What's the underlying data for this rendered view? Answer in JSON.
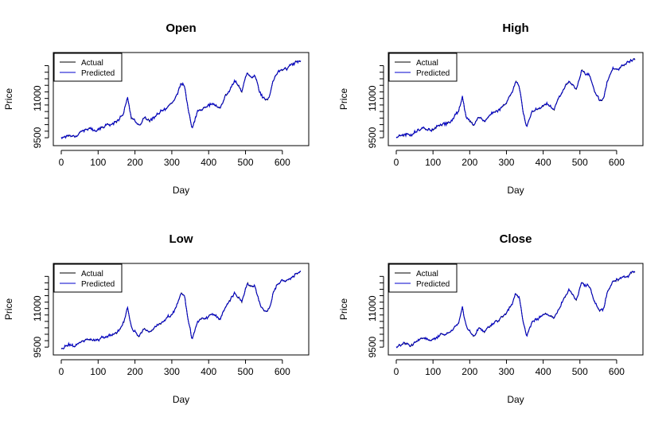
{
  "chart_data": [
    {
      "type": "line",
      "title": "Open",
      "xlabel": "Day",
      "ylabel": "Price",
      "xlim": [
        0,
        650
      ],
      "ylim": [
        9350,
        12600
      ],
      "xticks": [
        0,
        100,
        200,
        300,
        400,
        500,
        600
      ],
      "yticks": [
        9500,
        11000
      ],
      "grid": false,
      "legend_position": "top-left",
      "series": [
        {
          "name": "Actual",
          "color": "#000000"
        },
        {
          "name": "Predicted",
          "color": "#0000cc"
        }
      ],
      "x": [
        0,
        20,
        40,
        60,
        80,
        100,
        120,
        150,
        170,
        180,
        190,
        210,
        225,
        240,
        260,
        280,
        300,
        315,
        325,
        335,
        345,
        355,
        370,
        390,
        410,
        430,
        450,
        470,
        490,
        505,
        515,
        525,
        540,
        555,
        565,
        575,
        590,
        610,
        630,
        645,
        650
      ],
      "values": [
        9500,
        9600,
        9580,
        9800,
        9830,
        9780,
        9960,
        10100,
        10500,
        11050,
        10300,
        9900,
        10270,
        10100,
        10400,
        10550,
        10800,
        11150,
        11600,
        11450,
        10500,
        9850,
        10500,
        10650,
        10800,
        10600,
        11200,
        11650,
        11300,
        12000,
        11850,
        11900,
        11200,
        10900,
        11000,
        11700,
        12050,
        12150,
        12300,
        12450,
        12450
      ]
    },
    {
      "type": "line",
      "title": "High",
      "xlabel": "Day",
      "ylabel": "Price",
      "xlim": [
        0,
        650
      ],
      "ylim": [
        9350,
        12600
      ],
      "xticks": [
        0,
        100,
        200,
        300,
        400,
        500,
        600
      ],
      "yticks": [
        9500,
        11000
      ],
      "grid": false,
      "legend_position": "top-left",
      "series": [
        {
          "name": "Actual",
          "color": "#000000"
        },
        {
          "name": "Predicted",
          "color": "#0000cc"
        }
      ],
      "x": [
        0,
        20,
        40,
        60,
        80,
        100,
        120,
        150,
        170,
        180,
        190,
        210,
        225,
        240,
        260,
        280,
        300,
        315,
        325,
        335,
        345,
        355,
        370,
        390,
        410,
        430,
        450,
        470,
        490,
        505,
        515,
        525,
        540,
        555,
        565,
        575,
        590,
        610,
        630,
        645,
        650
      ],
      "values": [
        9530,
        9620,
        9600,
        9830,
        9850,
        9800,
        9990,
        10130,
        10530,
        11080,
        10330,
        9930,
        10300,
        10130,
        10430,
        10580,
        10830,
        11180,
        11630,
        11480,
        10540,
        9880,
        10530,
        10680,
        10830,
        10630,
        11230,
        11680,
        11330,
        12030,
        11880,
        11930,
        11230,
        10930,
        11030,
        11730,
        12080,
        12180,
        12330,
        12480,
        12480
      ]
    },
    {
      "type": "line",
      "title": "Low",
      "xlabel": "Day",
      "ylabel": "Price",
      "xlim": [
        0,
        650
      ],
      "ylim": [
        9350,
        12600
      ],
      "xticks": [
        0,
        100,
        200,
        300,
        400,
        500,
        600
      ],
      "yticks": [
        9500,
        11000
      ],
      "grid": false,
      "legend_position": "top-left",
      "series": [
        {
          "name": "Actual",
          "color": "#000000"
        },
        {
          "name": "Predicted",
          "color": "#0000cc"
        }
      ],
      "x": [
        0,
        20,
        40,
        60,
        80,
        100,
        120,
        150,
        170,
        180,
        190,
        210,
        225,
        240,
        260,
        280,
        300,
        315,
        325,
        335,
        345,
        355,
        370,
        390,
        410,
        430,
        450,
        470,
        490,
        505,
        515,
        525,
        540,
        555,
        565,
        575,
        590,
        610,
        630,
        645,
        650
      ],
      "values": [
        9470,
        9570,
        9550,
        9770,
        9800,
        9750,
        9930,
        10070,
        10470,
        11020,
        10270,
        9870,
        10240,
        10070,
        10370,
        10520,
        10770,
        11120,
        11570,
        11420,
        10460,
        9820,
        10470,
        10620,
        10770,
        10570,
        11170,
        11620,
        11270,
        11970,
        11820,
        11870,
        11170,
        10870,
        10970,
        11670,
        12020,
        12120,
        12270,
        12420,
        12420
      ]
    },
    {
      "type": "line",
      "title": "Close",
      "xlabel": "Day",
      "ylabel": "Price",
      "xlim": [
        0,
        650
      ],
      "ylim": [
        9350,
        12600
      ],
      "xticks": [
        0,
        100,
        200,
        300,
        400,
        500,
        600
      ],
      "yticks": [
        9500,
        11000
      ],
      "grid": false,
      "legend_position": "top-left",
      "series": [
        {
          "name": "Actual",
          "color": "#000000"
        },
        {
          "name": "Predicted",
          "color": "#0000cc"
        }
      ],
      "x": [
        0,
        20,
        40,
        60,
        80,
        100,
        120,
        150,
        170,
        180,
        190,
        210,
        225,
        240,
        260,
        280,
        300,
        315,
        325,
        335,
        345,
        355,
        370,
        390,
        410,
        430,
        450,
        470,
        490,
        505,
        515,
        525,
        540,
        555,
        565,
        575,
        590,
        610,
        630,
        645,
        650
      ],
      "values": [
        9500,
        9600,
        9580,
        9800,
        9830,
        9780,
        9960,
        10100,
        10500,
        11050,
        10300,
        9900,
        10270,
        10100,
        10400,
        10550,
        10800,
        11150,
        11600,
        11450,
        10500,
        9850,
        10500,
        10650,
        10800,
        10600,
        11200,
        11650,
        11300,
        12000,
        11850,
        11900,
        11200,
        10900,
        11000,
        11700,
        12050,
        12150,
        12300,
        12450,
        12450
      ]
    }
  ]
}
